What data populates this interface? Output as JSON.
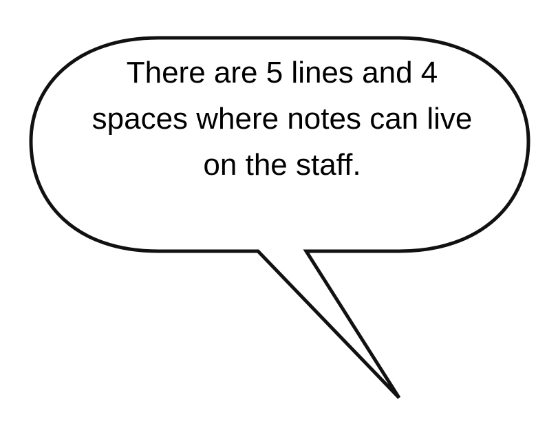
{
  "speech_bubble": {
    "lines": [
      "There are 5 lines and 4",
      "spaces where notes can live",
      "on the staff."
    ],
    "fill_color": "#ffffff",
    "outline_color": "#111111",
    "text_color": "#000000"
  }
}
